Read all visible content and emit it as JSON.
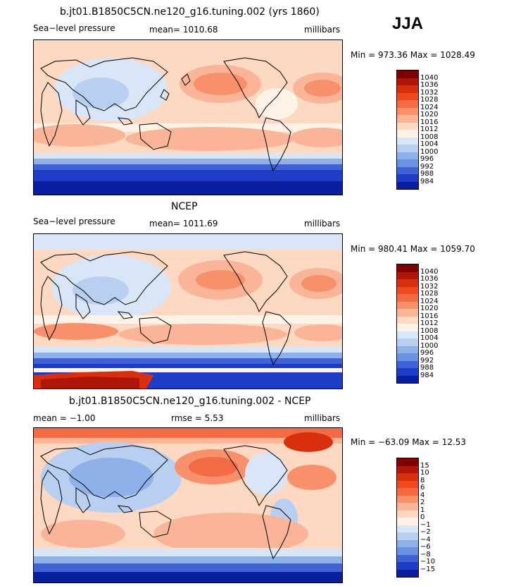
{
  "season": "JJA",
  "panels": [
    {
      "title": "b.jt01.B1850C5CN.ne120_g16.tuning.002 (yrs 1860)",
      "left_label": "Sea−level pressure",
      "center_label": "mean= 1010.68",
      "right_label": "millibars",
      "minmax": "Min = 973.36 Max = 1028.49"
    },
    {
      "title": "NCEP",
      "left_label": "Sea−level pressure",
      "center_label": "mean= 1011.69",
      "right_label": "millibars",
      "minmax": "Min = 980.41 Max = 1059.70"
    },
    {
      "title": "b.jt01.B1850C5CN.ne120_g16.tuning.002 - NCEP",
      "left_label": "mean =   −1.00",
      "center_label": "rmse =    5.53",
      "right_label": "millibars",
      "minmax": "Min = −63.09 Max =   12.53"
    }
  ],
  "chart_data": [
    {
      "type": "heatmap",
      "title": "b.jt01.B1850C5CN.ne120_g16.tuning.002 (yrs 1860)",
      "variable": "Sea-level pressure",
      "units": "millibars",
      "mean": 1010.68,
      "min": 973.36,
      "max": 1028.49,
      "colorbar_levels": [
        "1040",
        "1036",
        "1032",
        "1028",
        "1024",
        "1020",
        "1016",
        "1012",
        "1008",
        "1004",
        "1000",
        "996",
        "992",
        "988",
        "984"
      ],
      "colorbar_colors": [
        "#7f0000",
        "#b0150a",
        "#d8300f",
        "#ef4a1e",
        "#f26b45",
        "#f7906b",
        "#fab497",
        "#fdd8c2",
        "#fff3e8",
        "#d9e6f8",
        "#b8cff2",
        "#8fb1ea",
        "#6a92e2",
        "#3f63d6",
        "#1e3dc7",
        "#0a1f9f"
      ]
    },
    {
      "type": "heatmap",
      "title": "NCEP",
      "variable": "Sea-level pressure",
      "units": "millibars",
      "mean": 1011.69,
      "min": 980.41,
      "max": 1059.7,
      "colorbar_levels": [
        "1040",
        "1036",
        "1032",
        "1028",
        "1024",
        "1020",
        "1016",
        "1012",
        "1008",
        "1004",
        "1000",
        "996",
        "992",
        "988",
        "984"
      ],
      "colorbar_colors": [
        "#7f0000",
        "#b0150a",
        "#d8300f",
        "#ef4a1e",
        "#f26b45",
        "#f7906b",
        "#fab497",
        "#fdd8c2",
        "#fff3e8",
        "#d9e6f8",
        "#b8cff2",
        "#8fb1ea",
        "#6a92e2",
        "#3f63d6",
        "#1e3dc7",
        "#0a1f9f"
      ]
    },
    {
      "type": "heatmap",
      "title": "b.jt01.B1850C5CN.ne120_g16.tuning.002 - NCEP",
      "units": "millibars",
      "mean": -1.0,
      "rmse": 5.53,
      "min": -63.09,
      "max": 12.53,
      "colorbar_levels": [
        "15",
        "10",
        "8",
        "6",
        "4",
        "2",
        "1",
        "0",
        "−1",
        "−2",
        "−4",
        "−6",
        "−8",
        "−10",
        "−15"
      ],
      "colorbar_colors": [
        "#7f0000",
        "#b0150a",
        "#d8300f",
        "#ef4a1e",
        "#f26b45",
        "#f7906b",
        "#fab497",
        "#fdd8c2",
        "#fff3e8",
        "#d9e6f8",
        "#b8cff2",
        "#8fb1ea",
        "#6a92e2",
        "#3f63d6",
        "#1e3dc7",
        "#0a1f9f"
      ]
    }
  ]
}
